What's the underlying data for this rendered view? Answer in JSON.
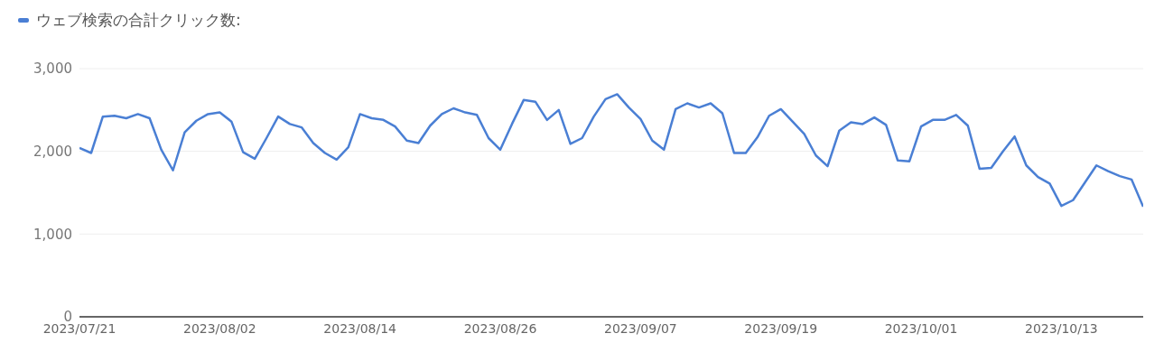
{
  "chart_data": {
    "type": "line",
    "x": [
      "2023-07-21",
      "2023-07-22",
      "2023-07-23",
      "2023-07-24",
      "2023-07-25",
      "2023-07-26",
      "2023-07-27",
      "2023-07-28",
      "2023-07-29",
      "2023-07-30",
      "2023-07-31",
      "2023-08-01",
      "2023-08-02",
      "2023-08-03",
      "2023-08-04",
      "2023-08-05",
      "2023-08-06",
      "2023-08-07",
      "2023-08-08",
      "2023-08-09",
      "2023-08-10",
      "2023-08-11",
      "2023-08-12",
      "2023-08-13",
      "2023-08-14",
      "2023-08-15",
      "2023-08-16",
      "2023-08-17",
      "2023-08-18",
      "2023-08-19",
      "2023-08-20",
      "2023-08-21",
      "2023-08-22",
      "2023-08-23",
      "2023-08-24",
      "2023-08-25",
      "2023-08-26",
      "2023-08-27",
      "2023-08-28",
      "2023-08-29",
      "2023-08-30",
      "2023-08-31",
      "2023-09-01",
      "2023-09-02",
      "2023-09-03",
      "2023-09-04",
      "2023-09-05",
      "2023-09-06",
      "2023-09-07",
      "2023-09-08",
      "2023-09-09",
      "2023-09-10",
      "2023-09-11",
      "2023-09-12",
      "2023-09-13",
      "2023-09-14",
      "2023-09-15",
      "2023-09-16",
      "2023-09-17",
      "2023-09-18",
      "2023-09-19",
      "2023-09-20",
      "2023-09-21",
      "2023-09-22",
      "2023-09-23",
      "2023-09-24",
      "2023-09-25",
      "2023-09-26",
      "2023-09-27",
      "2023-09-28",
      "2023-09-29",
      "2023-09-30",
      "2023-10-01",
      "2023-10-02",
      "2023-10-03",
      "2023-10-04",
      "2023-10-05",
      "2023-10-06",
      "2023-10-07",
      "2023-10-08",
      "2023-10-09",
      "2023-10-10",
      "2023-10-11",
      "2023-10-12",
      "2023-10-13",
      "2023-10-14",
      "2023-10-15",
      "2023-10-16",
      "2023-10-17",
      "2023-10-18",
      "2023-10-19",
      "2023-10-20"
    ],
    "series": [
      {
        "name": "ウェブ検索の合計クリック数:",
        "color": "#4a7fd4",
        "values": [
          2040,
          1980,
          2420,
          2430,
          2400,
          2450,
          2400,
          2020,
          1770,
          2230,
          2370,
          2450,
          2470,
          2360,
          1990,
          1910,
          2160,
          2420,
          2330,
          2290,
          2100,
          1980,
          1900,
          2050,
          2450,
          2400,
          2380,
          2300,
          2130,
          2100,
          2310,
          2450,
          2520,
          2470,
          2440,
          2160,
          2020,
          2330,
          2620,
          2600,
          2380,
          2500,
          2090,
          2160,
          2420,
          2630,
          2690,
          2530,
          2390,
          2130,
          2020,
          2510,
          2580,
          2530,
          2580,
          2460,
          1980,
          1980,
          2170,
          2430,
          2510,
          2360,
          2210,
          1950,
          1820,
          2250,
          2350,
          2330,
          2410,
          2320,
          1890,
          1880,
          2300,
          2380,
          2380,
          2440,
          2310,
          1790,
          1800,
          2000,
          2180,
          1830,
          1690,
          1610,
          1340,
          1410,
          1620,
          1830,
          1760,
          1700,
          1660,
          1330
        ]
      }
    ],
    "xlim": [
      "2023-07-21",
      "2023-10-20"
    ],
    "xticks": [
      {
        "value": "2023-07-21",
        "label": "2023/07/21"
      },
      {
        "value": "2023-08-02",
        "label": "2023/08/02"
      },
      {
        "value": "2023-08-14",
        "label": "2023/08/14"
      },
      {
        "value": "2023-08-26",
        "label": "2023/08/26"
      },
      {
        "value": "2023-09-07",
        "label": "2023/09/07"
      },
      {
        "value": "2023-09-19",
        "label": "2023/09/19"
      },
      {
        "value": "2023-10-01",
        "label": "2023/10/01"
      },
      {
        "value": "2023-10-13",
        "label": "2023/10/13"
      }
    ],
    "ylim": [
      0,
      3000
    ],
    "yticks": [
      {
        "value": 0,
        "label": "0"
      },
      {
        "value": 1000,
        "label": "1,000"
      },
      {
        "value": 2000,
        "label": "2,000"
      },
      {
        "value": 3000,
        "label": "3,000"
      }
    ],
    "grid": "y",
    "legend": "top left",
    "marker": "none",
    "line_style": "solid"
  }
}
